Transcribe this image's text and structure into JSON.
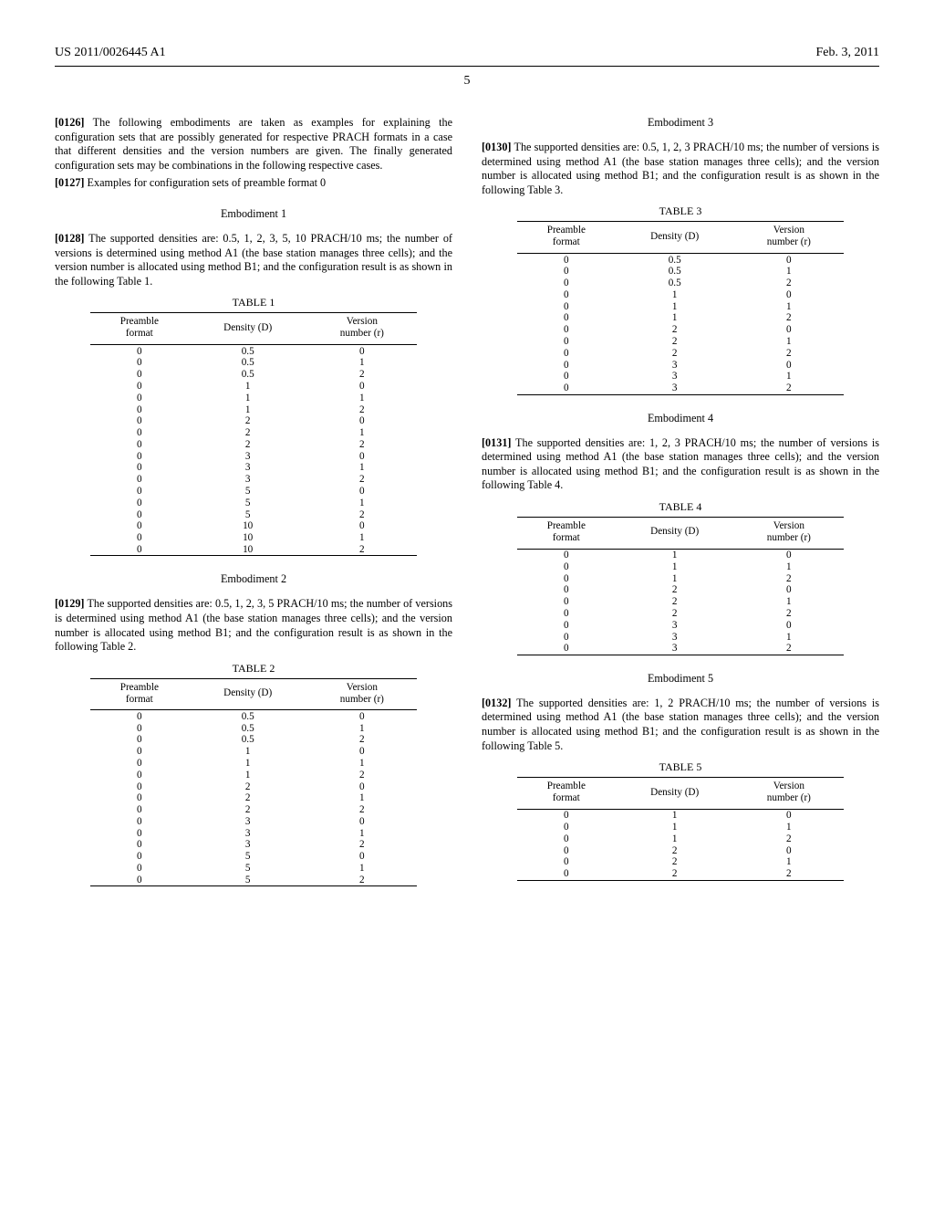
{
  "header": {
    "pub_number": "US 2011/0026445 A1",
    "pub_date": "Feb. 3, 2011",
    "page_number": "5"
  },
  "left": {
    "p0126": {
      "num": "[0126]",
      "text": "The following embodiments are taken as examples for explaining the configuration sets that are possibly generated for respective PRACH formats in a case that different densities and the version numbers are given. The finally generated configuration sets may be combinations in the following respective cases."
    },
    "p0127": {
      "num": "[0127]",
      "text": "Examples for configuration sets of preamble format 0"
    },
    "emb1": {
      "title": "Embodiment 1"
    },
    "p0128": {
      "num": "[0128]",
      "text": "The supported densities are: 0.5, 1, 2, 3, 5, 10 PRACH/10 ms; the number of versions is determined using method A1 (the base station manages three cells); and the version number is allocated using method B1; and the configuration result is as shown in the following Table 1."
    },
    "table1": {
      "title": "TABLE 1",
      "col1": "Preamble\nformat",
      "col2": "Density (D)",
      "col3": "Version\nnumber (r)",
      "rows": [
        [
          "0",
          "0.5",
          "0"
        ],
        [
          "0",
          "0.5",
          "1"
        ],
        [
          "0",
          "0.5",
          "2"
        ],
        [
          "0",
          "1",
          "0"
        ],
        [
          "0",
          "1",
          "1"
        ],
        [
          "0",
          "1",
          "2"
        ],
        [
          "0",
          "2",
          "0"
        ],
        [
          "0",
          "2",
          "1"
        ],
        [
          "0",
          "2",
          "2"
        ],
        [
          "0",
          "3",
          "0"
        ],
        [
          "0",
          "3",
          "1"
        ],
        [
          "0",
          "3",
          "2"
        ],
        [
          "0",
          "5",
          "0"
        ],
        [
          "0",
          "5",
          "1"
        ],
        [
          "0",
          "5",
          "2"
        ],
        [
          "0",
          "10",
          "0"
        ],
        [
          "0",
          "10",
          "1"
        ],
        [
          "0",
          "10",
          "2"
        ]
      ]
    },
    "emb2": {
      "title": "Embodiment 2"
    },
    "p0129": {
      "num": "[0129]",
      "text": "The supported densities are: 0.5, 1, 2, 3, 5 PRACH/10 ms; the number of versions is determined using method A1 (the base station manages three cells); and the version number is allocated using method B1; and the configuration result is as shown in the following Table 2."
    },
    "table2": {
      "title": "TABLE 2",
      "col1": "Preamble\nformat",
      "col2": "Density (D)",
      "col3": "Version\nnumber (r)",
      "rows": [
        [
          "0",
          "0.5",
          "0"
        ],
        [
          "0",
          "0.5",
          "1"
        ],
        [
          "0",
          "0.5",
          "2"
        ],
        [
          "0",
          "1",
          "0"
        ],
        [
          "0",
          "1",
          "1"
        ],
        [
          "0",
          "1",
          "2"
        ],
        [
          "0",
          "2",
          "0"
        ],
        [
          "0",
          "2",
          "1"
        ],
        [
          "0",
          "2",
          "2"
        ],
        [
          "0",
          "3",
          "0"
        ],
        [
          "0",
          "3",
          "1"
        ],
        [
          "0",
          "3",
          "2"
        ],
        [
          "0",
          "5",
          "0"
        ],
        [
          "0",
          "5",
          "1"
        ],
        [
          "0",
          "5",
          "2"
        ]
      ]
    }
  },
  "right": {
    "emb3": {
      "title": "Embodiment 3"
    },
    "p0130": {
      "num": "[0130]",
      "text": "The supported densities are: 0.5, 1, 2, 3 PRACH/10 ms; the number of versions is determined using method A1 (the base station manages three cells); and the version number is allocated using method B1; and the configuration result is as shown in the following Table 3."
    },
    "table3": {
      "title": "TABLE 3",
      "col1": "Preamble\nformat",
      "col2": "Density (D)",
      "col3": "Version\nnumber (r)",
      "rows": [
        [
          "0",
          "0.5",
          "0"
        ],
        [
          "0",
          "0.5",
          "1"
        ],
        [
          "0",
          "0.5",
          "2"
        ],
        [
          "0",
          "1",
          "0"
        ],
        [
          "0",
          "1",
          "1"
        ],
        [
          "0",
          "1",
          "2"
        ],
        [
          "0",
          "2",
          "0"
        ],
        [
          "0",
          "2",
          "1"
        ],
        [
          "0",
          "2",
          "2"
        ],
        [
          "0",
          "3",
          "0"
        ],
        [
          "0",
          "3",
          "1"
        ],
        [
          "0",
          "3",
          "2"
        ]
      ]
    },
    "emb4": {
      "title": "Embodiment 4"
    },
    "p0131": {
      "num": "[0131]",
      "text": "The supported densities are: 1, 2, 3 PRACH/10 ms; the number of versions is determined using method A1 (the base station manages three cells); and the version number is allocated using method B1; and the configuration result is as shown in the following Table 4."
    },
    "table4": {
      "title": "TABLE 4",
      "col1": "Preamble\nformat",
      "col2": "Density (D)",
      "col3": "Version\nnumber (r)",
      "rows": [
        [
          "0",
          "1",
          "0"
        ],
        [
          "0",
          "1",
          "1"
        ],
        [
          "0",
          "1",
          "2"
        ],
        [
          "0",
          "2",
          "0"
        ],
        [
          "0",
          "2",
          "1"
        ],
        [
          "0",
          "2",
          "2"
        ],
        [
          "0",
          "3",
          "0"
        ],
        [
          "0",
          "3",
          "1"
        ],
        [
          "0",
          "3",
          "2"
        ]
      ]
    },
    "emb5": {
      "title": "Embodiment 5"
    },
    "p0132": {
      "num": "[0132]",
      "text": "The supported densities are: 1, 2 PRACH/10 ms; the number of versions is determined using method A1 (the base station manages three cells); and the version number is allocated using method B1; and the configuration result is as shown in the following Table 5."
    },
    "table5": {
      "title": "TABLE 5",
      "col1": "Preamble\nformat",
      "col2": "Density (D)",
      "col3": "Version\nnumber (r)",
      "rows": [
        [
          "0",
          "1",
          "0"
        ],
        [
          "0",
          "1",
          "1"
        ],
        [
          "0",
          "1",
          "2"
        ],
        [
          "0",
          "2",
          "0"
        ],
        [
          "0",
          "2",
          "1"
        ],
        [
          "0",
          "2",
          "2"
        ]
      ]
    }
  }
}
